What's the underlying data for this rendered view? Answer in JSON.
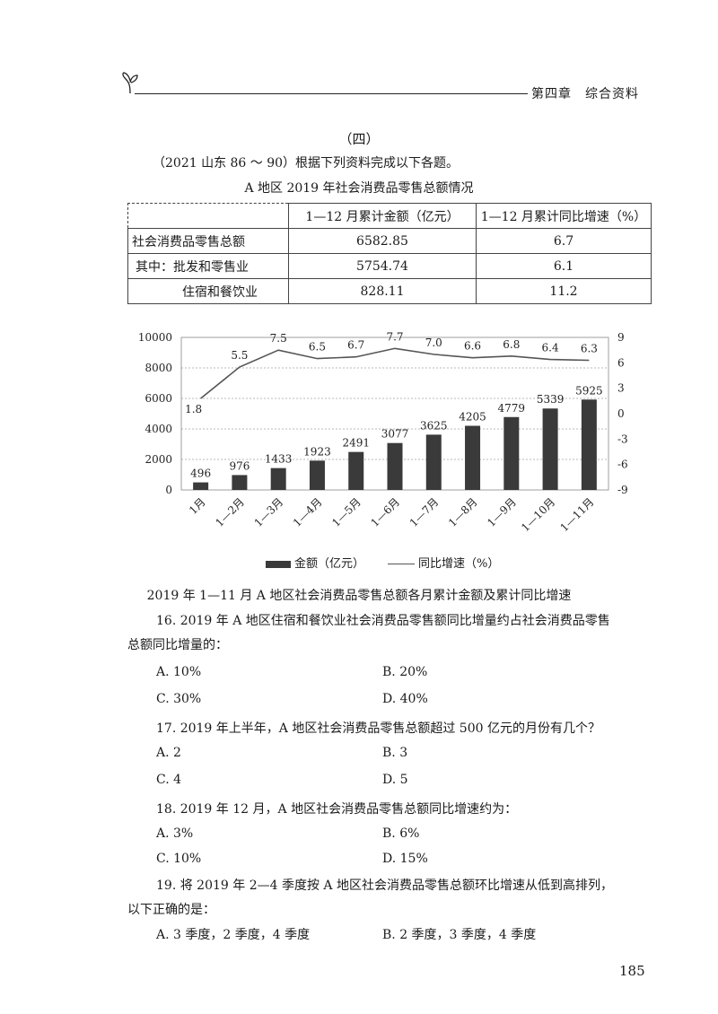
{
  "header": {
    "chapter": "第四章　综合资料"
  },
  "section": {
    "title": "（四）",
    "intro": "（2021 山东 86 ～ 90）根据下列资料完成以下各题。"
  },
  "table": {
    "title": "A 地区 2019 年社会消费品零售总额情况",
    "headers": [
      "",
      "1—12 月累计金额（亿元）",
      "1—12 月累计同比增速（%）"
    ],
    "rows": [
      [
        "社会消费品零售总额",
        "6582.85",
        "6.7"
      ],
      [
        "其中：批发和零售业",
        "5754.74",
        "6.1"
      ],
      [
        "住宿和餐饮业",
        "828.11",
        "11.2"
      ]
    ]
  },
  "chart_data": {
    "type": "bar",
    "categories": [
      "1月",
      "1—2月",
      "1—3月",
      "1—4月",
      "1—5月",
      "1—6月",
      "1—7月",
      "1—8月",
      "1—9月",
      "1—10月",
      "1—11月"
    ],
    "series": [
      {
        "name": "金额（亿元）",
        "type": "bar",
        "axis": "left",
        "values": [
          496,
          976,
          1433,
          1923,
          2491,
          3077,
          3625,
          4205,
          4779,
          5339,
          5925
        ]
      },
      {
        "name": "同比增速（%）",
        "type": "line",
        "axis": "right",
        "values": [
          1.8,
          5.5,
          7.5,
          6.5,
          6.7,
          7.7,
          7.0,
          6.6,
          6.8,
          6.4,
          6.3
        ]
      }
    ],
    "left_ticks": [
      "10000",
      "8000",
      "6000",
      "4000",
      "2000",
      "0"
    ],
    "right_ticks": [
      "9",
      "6",
      "3",
      "0",
      "-3",
      "-6",
      "-9"
    ],
    "bar_labels": [
      "496",
      "976",
      "1433",
      "1923",
      "2491",
      "3077",
      "3625",
      "4205",
      "4779",
      "5339",
      "5925"
    ],
    "line_labels": [
      "1.8",
      "5.5",
      "7.5",
      "6.5",
      "6.7",
      "7.7",
      "7.0",
      "6.6",
      "6.8",
      "6.4",
      "6.3"
    ],
    "ylim_left": [
      0,
      10000
    ],
    "ylim_right": [
      -9,
      9
    ],
    "caption": "2019 年 1—11 月 A 地区社会消费品零售总额各月累计金额及累计同比增速",
    "legend": {
      "bar": "金额（亿元）",
      "line": "同比增速（%）"
    }
  },
  "questions": [
    {
      "stem_lines": [
        "16. 2019 年 A 地区住宿和餐饮业社会消费品零售额同比增量约占社会消费品零售",
        "总额同比增量的："
      ],
      "options": [
        "A. 10%",
        "B. 20%",
        "C. 30%",
        "D. 40%"
      ]
    },
    {
      "stem_lines": [
        "17. 2019 年上半年，A 地区社会消费品零售总额超过 500 亿元的月份有几个？"
      ],
      "options": [
        "A. 2",
        "B. 3",
        "C. 4",
        "D. 5"
      ]
    },
    {
      "stem_lines": [
        "18. 2019 年 12 月，A 地区社会消费品零售总额同比增速约为："
      ],
      "options": [
        "A. 3%",
        "B. 6%",
        "C. 10%",
        "D. 15%"
      ]
    },
    {
      "stem_lines": [
        "19. 将 2019 年 2—4 季度按 A 地区社会消费品零售总额环比增速从低到高排列，",
        "以下正确的是："
      ],
      "options": [
        "A. 3 季度，2 季度，4 季度",
        "B. 2 季度，3 季度，4 季度"
      ]
    }
  ],
  "page_number": "185"
}
